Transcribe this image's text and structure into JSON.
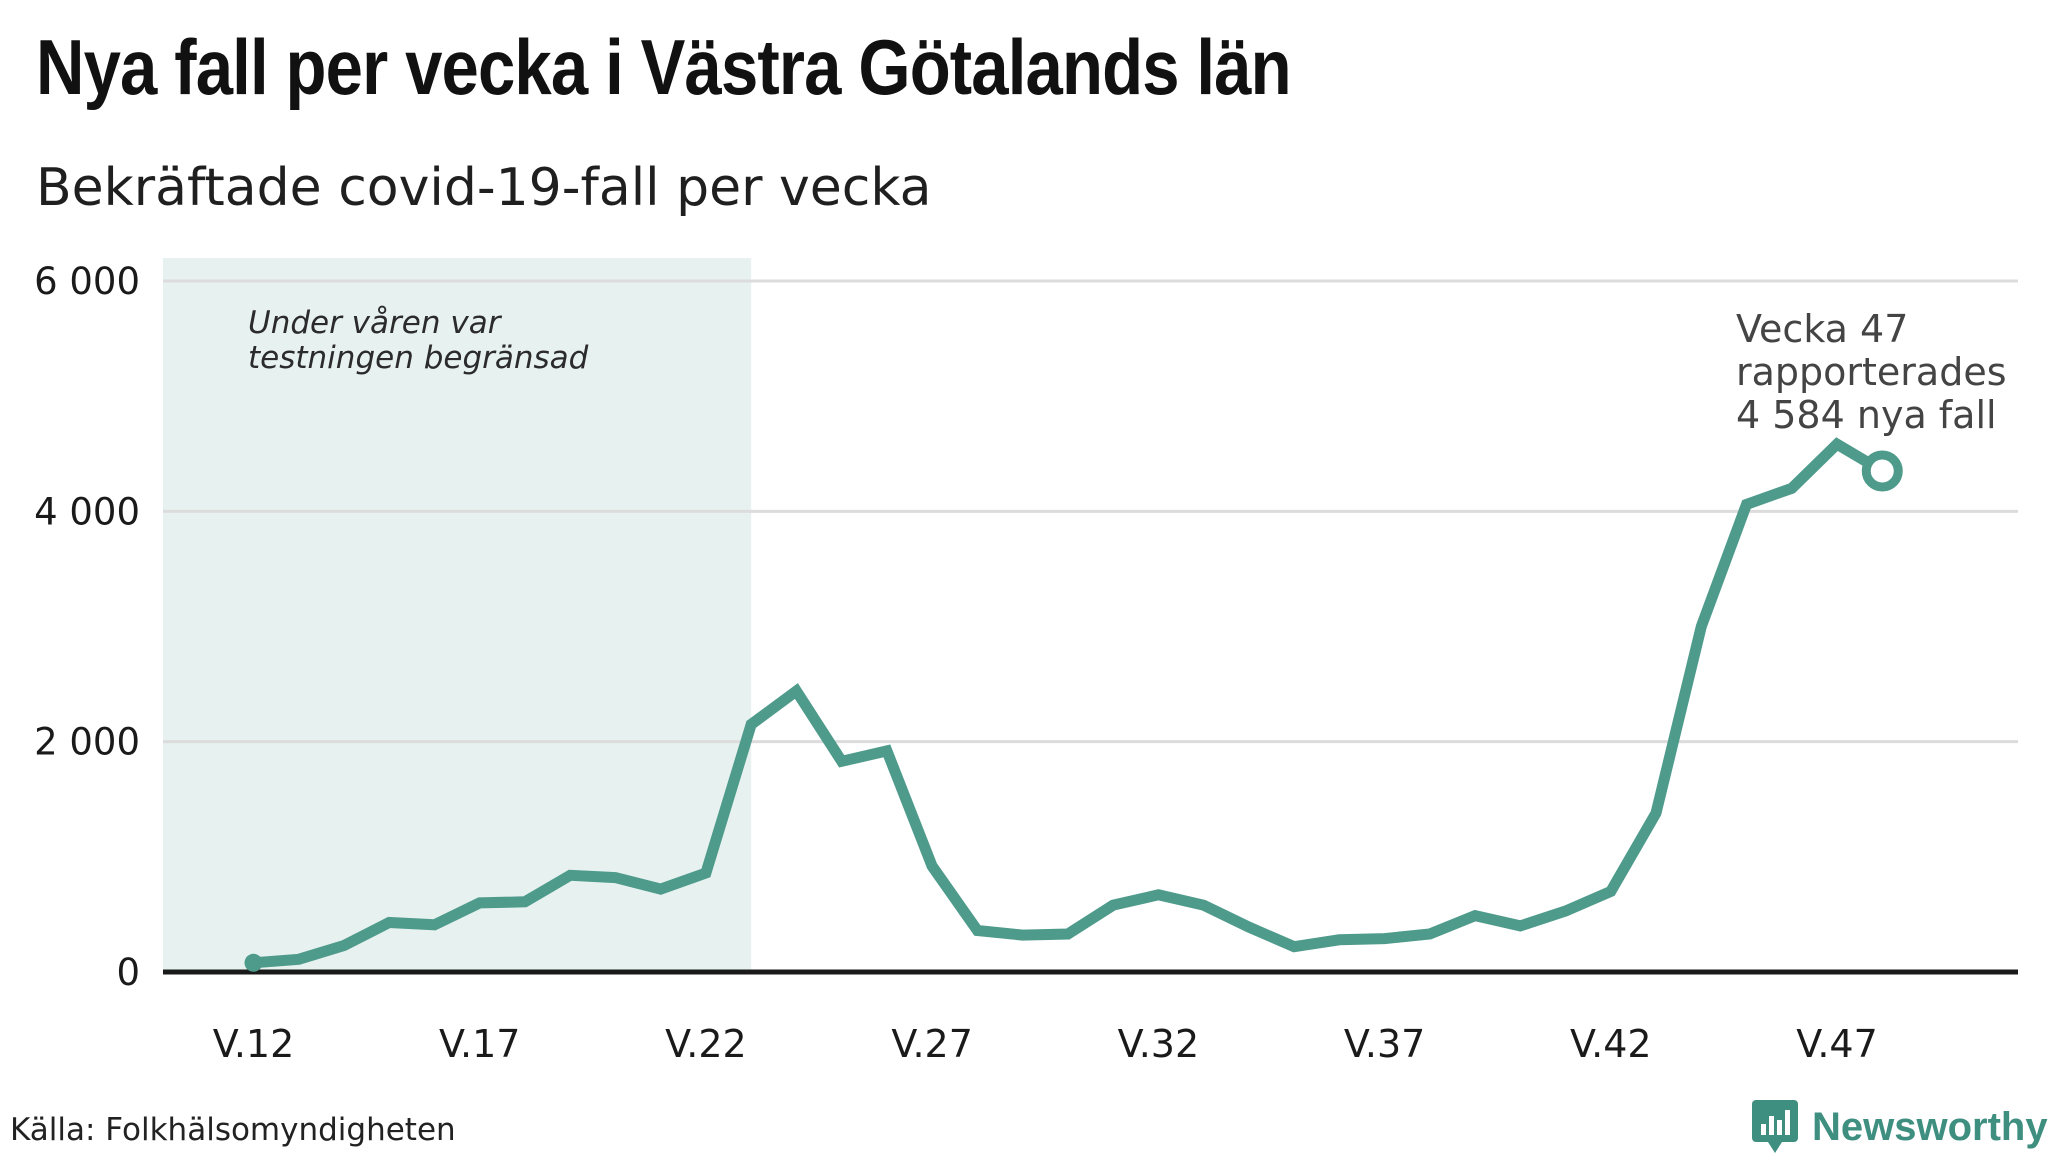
{
  "header": {
    "title": "Nya fall per vecka i Västra Götalands län",
    "subtitle": "Bekräftade covid-19-fall per vecka"
  },
  "footer": {
    "source": "Källa: Folkhälsomyndigheten",
    "brand": "Newsworthy"
  },
  "colors": {
    "line": "#4e9b8c",
    "shade": "#e7f1ef",
    "grid": "#dcdcdc",
    "axis": "#1a1a1a",
    "brand": "#3e8f80"
  },
  "chart_data": {
    "type": "line",
    "title": "Nya fall per vecka i Västra Götalands län",
    "subtitle": "Bekräftade covid-19-fall per vecka",
    "xlabel": "",
    "ylabel": "",
    "x": [
      12,
      13,
      14,
      15,
      16,
      17,
      18,
      19,
      20,
      21,
      22,
      23,
      24,
      25,
      26,
      27,
      28,
      29,
      30,
      31,
      32,
      33,
      34,
      35,
      36,
      37,
      38,
      39,
      40,
      41,
      42,
      43,
      44,
      45,
      46,
      47,
      48
    ],
    "series": [
      {
        "values": [
          80,
          110,
          230,
          430,
          410,
          600,
          610,
          840,
          820,
          720,
          860,
          2150,
          2440,
          1830,
          1920,
          920,
          360,
          320,
          330,
          580,
          670,
          580,
          390,
          220,
          280,
          290,
          330,
          490,
          400,
          530,
          700,
          1380,
          3000,
          4060,
          4200,
          4584,
          4350
        ]
      }
    ],
    "x_ticks": [
      12,
      17,
      22,
      27,
      32,
      37,
      42,
      47
    ],
    "x_tick_labels": [
      "V.12",
      "V.17",
      "V.22",
      "V.27",
      "V.32",
      "V.37",
      "V.42",
      "V.47"
    ],
    "y_ticks": [
      0,
      2000,
      4000,
      6000
    ],
    "y_tick_labels": [
      "0",
      "2 000",
      "4 000",
      "6 000"
    ],
    "xlim": [
      10,
      51
    ],
    "ylim": [
      0,
      6200
    ],
    "grid": true,
    "shaded_region": {
      "x_start": 10,
      "x_end": 23,
      "label_line1": "Under våren var",
      "label_line2": "testningen begränsad"
    },
    "annotation": {
      "line1": "Vecka 47",
      "line2": "rapporterades",
      "line3": "4 584 nya fall"
    }
  }
}
